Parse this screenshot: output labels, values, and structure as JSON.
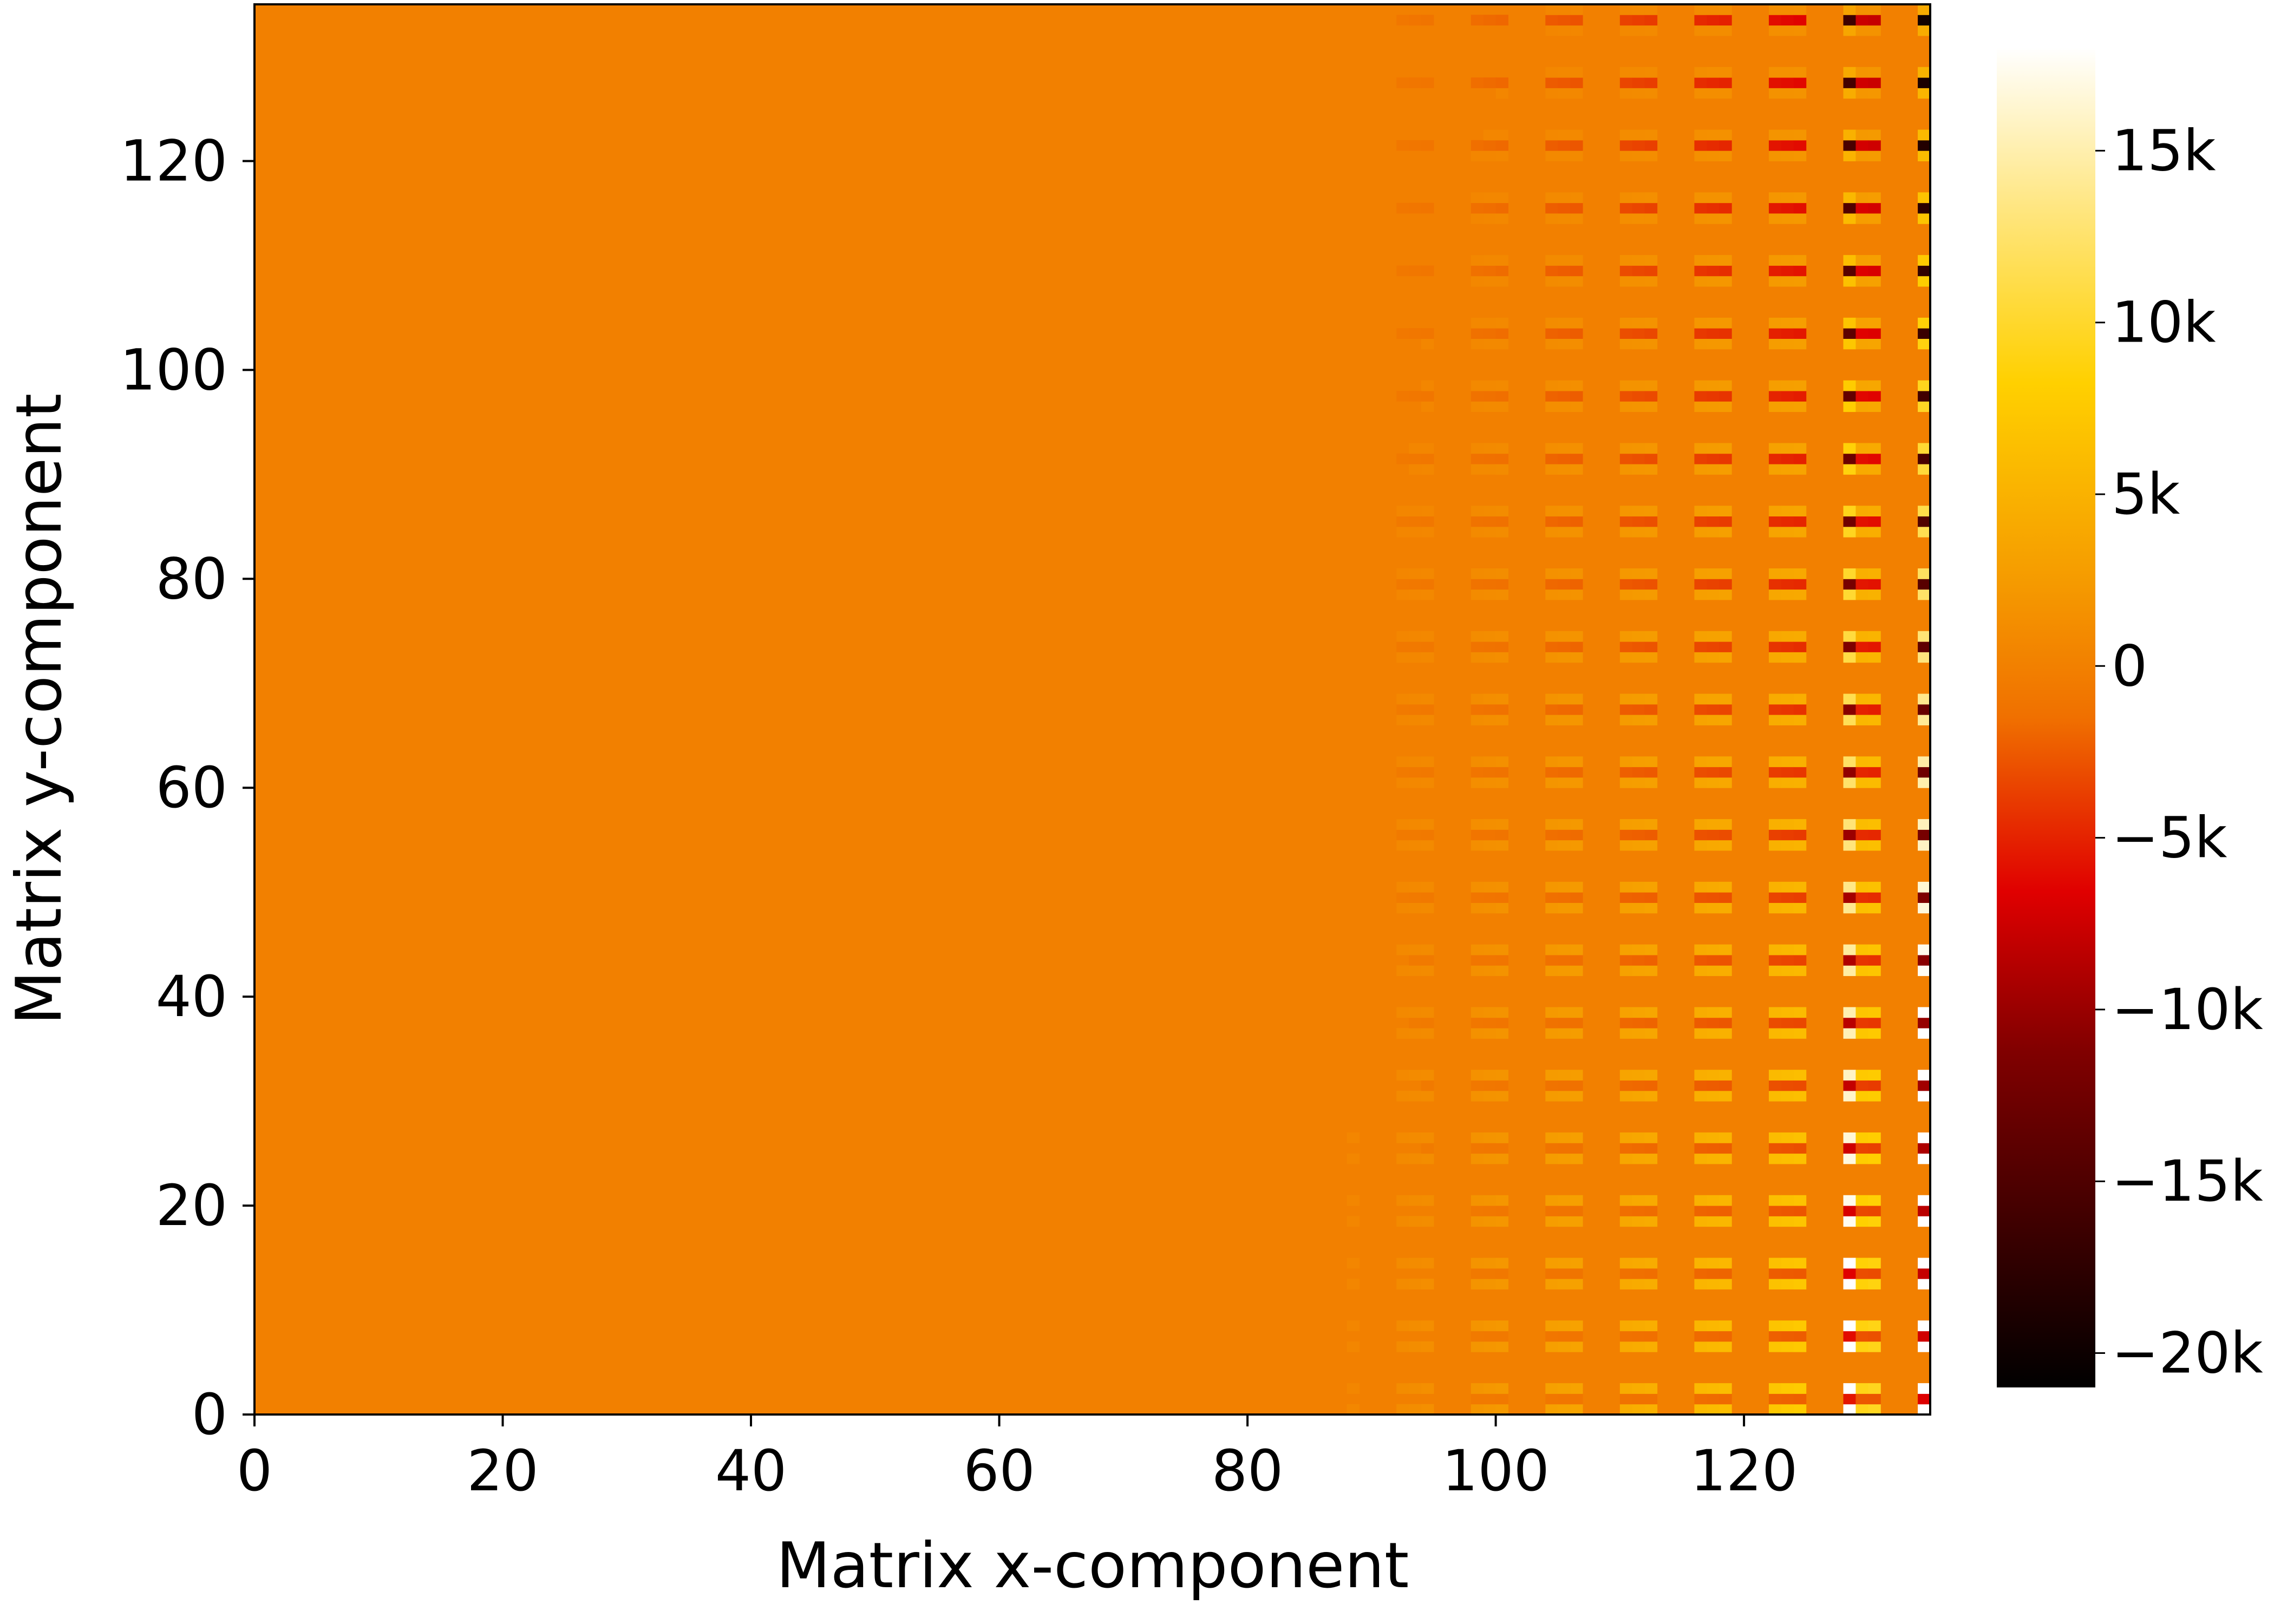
{
  "chart_data": {
    "type": "heatmap",
    "title": "",
    "xlabel": "Matrix x-component",
    "ylabel": "Matrix y-component",
    "xlim": [
      0,
      135
    ],
    "ylim": [
      0,
      135
    ],
    "grid_shape": [
      135,
      135
    ],
    "x_ticks": [
      0,
      20,
      40,
      60,
      80,
      100,
      120
    ],
    "x_tick_labels": [
      "0",
      "20",
      "40",
      "60",
      "80",
      "100",
      "120"
    ],
    "y_ticks": [
      0,
      20,
      40,
      60,
      80,
      100,
      120
    ],
    "y_tick_labels": [
      "0",
      "20",
      "40",
      "60",
      "80",
      "100",
      "120"
    ],
    "colormap": "afmhot",
    "colorbar": {
      "min": -21000,
      "max": 18000,
      "ticks": [
        -20000,
        -15000,
        -10000,
        -5000,
        0,
        5000,
        10000,
        15000
      ],
      "tick_labels": [
        "−20k",
        "−15k",
        "−10k",
        "−5k",
        "0",
        "5k",
        "10k",
        "15k"
      ]
    },
    "pattern": {
      "background_value": 0,
      "structured_columns_start_x": 80,
      "column_period": 6,
      "row_period": 6,
      "strongest_columns_x": [
        128,
        134
      ],
      "min_value": -21000,
      "max_value": 18000
    },
    "grid": false,
    "legend": "colorbar-right"
  }
}
